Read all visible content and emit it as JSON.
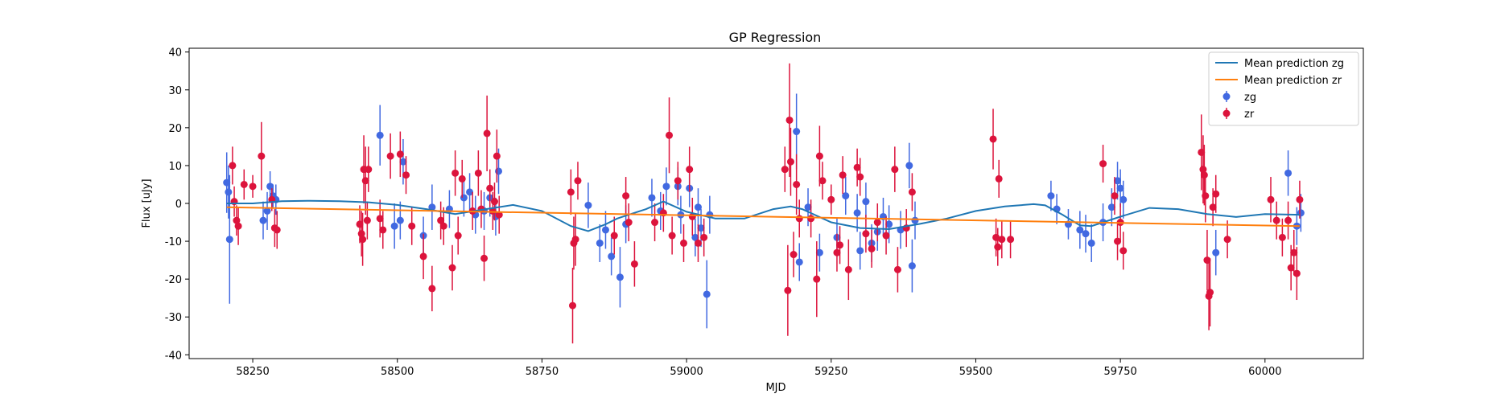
{
  "chart_data": {
    "type": "scatter",
    "title": "GP Regression",
    "xlabel": "MJD",
    "ylabel": "Flux [uJy]",
    "xlim": [
      58140,
      60170
    ],
    "ylim": [
      -41,
      41
    ],
    "xticks": [
      58250,
      58500,
      58750,
      59000,
      59250,
      59500,
      59750,
      60000
    ],
    "yticks": [
      -40,
      -30,
      -20,
      -10,
      0,
      10,
      20,
      30,
      40
    ],
    "legend_position": "top-right",
    "colors": {
      "zg_line": "#1f77b4",
      "zr_line": "#ff7f0e",
      "zg_points": "#4169e1",
      "zr_points": "#dc143c"
    },
    "series": [
      {
        "name": "Mean prediction zg",
        "kind": "line",
        "x": [
          58205,
          58250,
          58300,
          58350,
          58400,
          58450,
          58500,
          58550,
          58600,
          58650,
          58700,
          58750,
          58800,
          58830,
          58860,
          58880,
          58900,
          58930,
          58960,
          59000,
          59050,
          59100,
          59150,
          59180,
          59200,
          59250,
          59300,
          59350,
          59400,
          59450,
          59500,
          59550,
          59600,
          59620,
          59650,
          59680,
          59700,
          59750,
          59800,
          59850,
          59900,
          59950,
          60000,
          60060
        ],
        "y": [
          0,
          0,
          0.6,
          0.7,
          0.6,
          0.3,
          -0.4,
          -1.5,
          -2.8,
          -1.6,
          -0.4,
          -2.0,
          -6.0,
          -7.3,
          -5.5,
          -4.0,
          -3.0,
          -1.5,
          0.5,
          -2.2,
          -4.0,
          -4.0,
          -1.5,
          -0.8,
          -1.5,
          -5.0,
          -6.5,
          -6.8,
          -5.5,
          -4.0,
          -2.0,
          -0.8,
          -0.2,
          -0.5,
          -3.0,
          -5.8,
          -6.0,
          -3.5,
          -1.2,
          -1.5,
          -2.8,
          -3.6,
          -2.8,
          -3.0
        ]
      },
      {
        "name": "Mean prediction zr",
        "kind": "line",
        "x": [
          58205,
          60060
        ],
        "y": [
          -1.0,
          -6.0
        ]
      },
      {
        "name": "zg",
        "kind": "errorbar",
        "points": [
          [
            58205,
            5.5,
            8
          ],
          [
            58208,
            3.0,
            7
          ],
          [
            58210,
            -9.5,
            17
          ],
          [
            58268,
            -4.5,
            5
          ],
          [
            58275,
            -2.0,
            5
          ],
          [
            58280,
            4.5,
            4
          ],
          [
            58285,
            2.0,
            3
          ],
          [
            58290,
            1.0,
            4
          ],
          [
            58470,
            18.0,
            8
          ],
          [
            58495,
            -6.0,
            6
          ],
          [
            58505,
            -4.5,
            5
          ],
          [
            58510,
            11.0,
            6
          ],
          [
            58545,
            -8.5,
            5
          ],
          [
            58560,
            -1.0,
            6
          ],
          [
            58590,
            -1.5,
            5
          ],
          [
            58615,
            1.5,
            5
          ],
          [
            58625,
            3.0,
            5
          ],
          [
            58635,
            -3.0,
            5
          ],
          [
            58650,
            -2.0,
            5
          ],
          [
            58660,
            1.5,
            5
          ],
          [
            58670,
            -3.5,
            5
          ],
          [
            58675,
            8.5,
            6
          ],
          [
            58830,
            -0.5,
            6
          ],
          [
            58850,
            -10.5,
            5
          ],
          [
            58860,
            -7.0,
            5
          ],
          [
            58870,
            -14.0,
            5
          ],
          [
            58885,
            -19.5,
            8
          ],
          [
            58895,
            -5.5,
            5
          ],
          [
            58940,
            1.5,
            5
          ],
          [
            58955,
            -2.0,
            5
          ],
          [
            58965,
            4.5,
            5
          ],
          [
            58985,
            4.5,
            5
          ],
          [
            58990,
            -3.0,
            5
          ],
          [
            59005,
            4.0,
            5
          ],
          [
            59015,
            -9.0,
            5
          ],
          [
            59020,
            -1.0,
            5
          ],
          [
            59025,
            -6.5,
            5
          ],
          [
            59035,
            -24.0,
            9
          ],
          [
            59040,
            -3.0,
            5
          ],
          [
            59190,
            19.0,
            10
          ],
          [
            59195,
            -15.5,
            5
          ],
          [
            59210,
            -1.0,
            5
          ],
          [
            59230,
            -13.0,
            5
          ],
          [
            59260,
            -9.0,
            5
          ],
          [
            59275,
            2.0,
            5
          ],
          [
            59295,
            -2.5,
            5
          ],
          [
            59300,
            -12.5,
            5
          ],
          [
            59310,
            0.5,
            5
          ],
          [
            59320,
            -10.5,
            5
          ],
          [
            59330,
            -7.5,
            5
          ],
          [
            59340,
            -3.5,
            5
          ],
          [
            59350,
            -5.5,
            5
          ],
          [
            59370,
            -7.0,
            5
          ],
          [
            59385,
            10.0,
            6
          ],
          [
            59390,
            -16.5,
            7
          ],
          [
            59395,
            -4.5,
            5
          ],
          [
            59630,
            2.0,
            4
          ],
          [
            59640,
            -1.5,
            4
          ],
          [
            59660,
            -5.5,
            4
          ],
          [
            59680,
            -7.0,
            5
          ],
          [
            59690,
            -8.0,
            5
          ],
          [
            59700,
            -10.5,
            5
          ],
          [
            59720,
            -5.0,
            5
          ],
          [
            59735,
            -1.0,
            5
          ],
          [
            59745,
            6.0,
            5
          ],
          [
            59750,
            4.0,
            5
          ],
          [
            59755,
            1.0,
            5
          ],
          [
            59915,
            -13.0,
            6
          ],
          [
            60040,
            8.0,
            6
          ],
          [
            60055,
            -6.0,
            5
          ],
          [
            60062,
            -2.5,
            5
          ]
        ]
      },
      {
        "name": "zr",
        "kind": "errorbar",
        "points": [
          [
            58215,
            10.0,
            5
          ],
          [
            58218,
            0.5,
            4
          ],
          [
            58222,
            -4.5,
            4
          ],
          [
            58225,
            -6.0,
            5
          ],
          [
            58235,
            5.0,
            4
          ],
          [
            58250,
            4.5,
            3
          ],
          [
            58265,
            12.5,
            9
          ],
          [
            58283,
            1.0,
            3
          ],
          [
            58288,
            -6.5,
            5
          ],
          [
            58292,
            -7.0,
            5
          ],
          [
            58435,
            -5.5,
            5
          ],
          [
            58438,
            -8.0,
            6
          ],
          [
            58440,
            -9.5,
            7
          ],
          [
            58442,
            9.0,
            9
          ],
          [
            58445,
            6.0,
            9
          ],
          [
            58448,
            -4.5,
            5
          ],
          [
            58450,
            9.0,
            6
          ],
          [
            58470,
            -4.0,
            5
          ],
          [
            58475,
            -7.0,
            5
          ],
          [
            58488,
            12.5,
            6
          ],
          [
            58505,
            13.0,
            6
          ],
          [
            58515,
            7.5,
            5
          ],
          [
            58525,
            -6.0,
            5
          ],
          [
            58545,
            -14.0,
            6
          ],
          [
            58560,
            -22.5,
            6
          ],
          [
            58575,
            -4.5,
            5
          ],
          [
            58580,
            -6.0,
            5
          ],
          [
            58595,
            -17.0,
            6
          ],
          [
            58600,
            8.0,
            6
          ],
          [
            58605,
            -8.5,
            5
          ],
          [
            58612,
            6.5,
            5
          ],
          [
            58630,
            -2.0,
            5
          ],
          [
            58640,
            8.0,
            6
          ],
          [
            58645,
            -1.5,
            5
          ],
          [
            58650,
            -14.5,
            6
          ],
          [
            58655,
            18.5,
            10
          ],
          [
            58660,
            4.0,
            5
          ],
          [
            58665,
            -2.0,
            5
          ],
          [
            58668,
            0.5,
            5
          ],
          [
            58672,
            12.5,
            7
          ],
          [
            58676,
            -3.0,
            5
          ],
          [
            58800,
            3.0,
            6
          ],
          [
            58803,
            -27.0,
            10
          ],
          [
            58805,
            -10.5,
            7
          ],
          [
            58808,
            -9.5,
            7
          ],
          [
            58812,
            6.0,
            5
          ],
          [
            58875,
            -8.5,
            5
          ],
          [
            58895,
            2.0,
            5
          ],
          [
            58900,
            -5.0,
            5
          ],
          [
            58910,
            -16.0,
            6
          ],
          [
            58945,
            -5.0,
            5
          ],
          [
            58960,
            -2.5,
            5
          ],
          [
            58970,
            18.0,
            10
          ],
          [
            58975,
            -8.5,
            5
          ],
          [
            58985,
            6.0,
            5
          ],
          [
            58995,
            -10.5,
            5
          ],
          [
            59005,
            9.0,
            6
          ],
          [
            59010,
            -3.5,
            5
          ],
          [
            59020,
            -10.5,
            5
          ],
          [
            59030,
            -9.0,
            5
          ],
          [
            59170,
            9.0,
            6
          ],
          [
            59175,
            -23.0,
            12
          ],
          [
            59178,
            22.0,
            15
          ],
          [
            59180,
            11.0,
            9
          ],
          [
            59185,
            -13.5,
            6
          ],
          [
            59190,
            5.0,
            8
          ],
          [
            59195,
            -4.0,
            5
          ],
          [
            59215,
            -4.0,
            5
          ],
          [
            59225,
            -20.0,
            10
          ],
          [
            59230,
            12.5,
            8
          ],
          [
            59235,
            6.0,
            5
          ],
          [
            59250,
            1.0,
            4
          ],
          [
            59260,
            -13.0,
            5
          ],
          [
            59265,
            -11.0,
            5
          ],
          [
            59270,
            7.5,
            5
          ],
          [
            59280,
            -17.5,
            8
          ],
          [
            59295,
            9.5,
            5
          ],
          [
            59300,
            7.0,
            5
          ],
          [
            59310,
            -8.0,
            5
          ],
          [
            59320,
            -12.0,
            5
          ],
          [
            59330,
            -5.0,
            5
          ],
          [
            59345,
            -8.5,
            5
          ],
          [
            59360,
            9.0,
            6
          ],
          [
            59365,
            -17.5,
            6
          ],
          [
            59380,
            -6.5,
            5
          ],
          [
            59390,
            3.0,
            5
          ],
          [
            59530,
            17.0,
            8
          ],
          [
            59535,
            -9.0,
            5
          ],
          [
            59538,
            -11.5,
            5
          ],
          [
            59540,
            6.5,
            5
          ],
          [
            59545,
            -9.5,
            5
          ],
          [
            59560,
            -9.5,
            5
          ],
          [
            59720,
            10.5,
            5
          ],
          [
            59740,
            2.0,
            5
          ],
          [
            59745,
            -10.0,
            5
          ],
          [
            59750,
            -5.0,
            5
          ],
          [
            59755,
            -12.5,
            5
          ],
          [
            59890,
            13.5,
            10
          ],
          [
            59893,
            9.0,
            9
          ],
          [
            59895,
            7.5,
            8
          ],
          [
            59897,
            2.0,
            7
          ],
          [
            59900,
            -15.0,
            8
          ],
          [
            59903,
            -24.5,
            9
          ],
          [
            59905,
            -23.5,
            9
          ],
          [
            59910,
            -1.0,
            5
          ],
          [
            59915,
            2.5,
            5
          ],
          [
            59935,
            -9.5,
            5
          ],
          [
            60010,
            1.0,
            6
          ],
          [
            60020,
            -4.5,
            5
          ],
          [
            60030,
            -9.0,
            5
          ],
          [
            60040,
            -4.5,
            5
          ],
          [
            60045,
            -17.0,
            6
          ],
          [
            60050,
            -13.0,
            6
          ],
          [
            60055,
            -18.5,
            7
          ],
          [
            60060,
            1.0,
            5
          ]
        ]
      }
    ]
  }
}
